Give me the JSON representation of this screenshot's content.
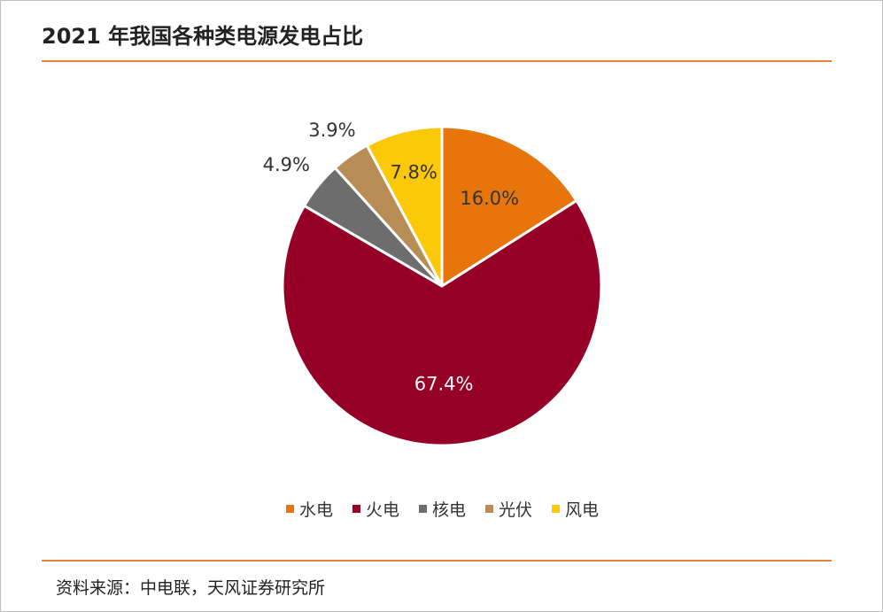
{
  "title": "2021 年我国各种类电源发电占比",
  "source": "资料来源：中电联，天风证券研究所",
  "chart_data": {
    "type": "pie",
    "title": "2021 年我国各种类电源发电占比",
    "categories": [
      "水电",
      "火电",
      "核电",
      "光伏",
      "风电"
    ],
    "values": [
      16.0,
      67.4,
      4.9,
      3.9,
      7.8
    ],
    "labels": [
      "16.0%",
      "67.4%",
      "4.9%",
      "3.9%",
      "7.8%"
    ],
    "colors": [
      "#e8740c",
      "#960026",
      "#6d6d6d",
      "#b78c55",
      "#fcc80a"
    ],
    "label_colors": [
      "#333333",
      "#ffffff",
      "#333333",
      "#333333",
      "#333333"
    ],
    "start": "12 o'clock, clockwise",
    "legend": "bottom"
  }
}
